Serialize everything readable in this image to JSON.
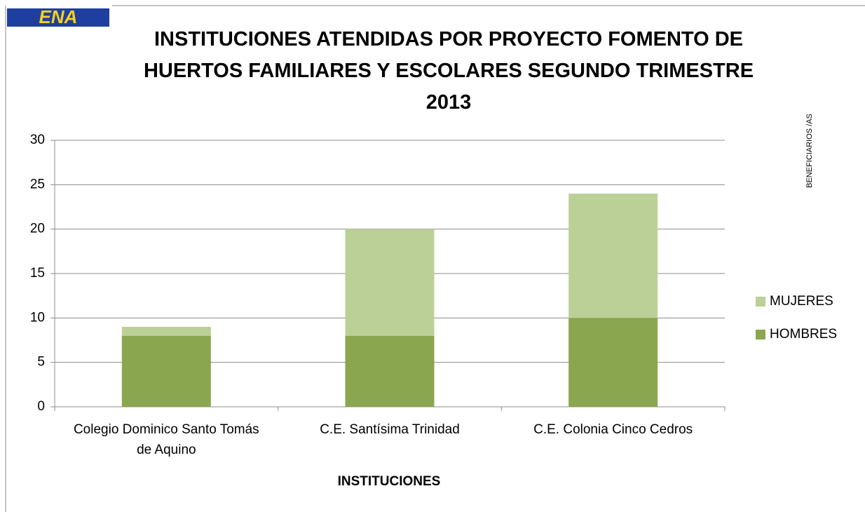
{
  "logo": "ENA",
  "chart_data": {
    "type": "stacked_bar",
    "title": "INSTITUCIONES ATENDIDAS POR PROYECTO FOMENTO DE HUERTOS FAMILIARES Y ESCOLARES SEGUNDO TRIMESTRE 2013",
    "x_label": "INSTITUCIONES",
    "y_label": "BENEFICIARIOS /AS",
    "categories": [
      "Colegio Dominico Santo Tomás de Aquino",
      "C.E. Santísima Trinidad",
      "C.E. Colonia Cinco Cedros"
    ],
    "series": [
      {
        "name": "HOMBRES",
        "color": "#8aa64e",
        "values": [
          8,
          8,
          10
        ]
      },
      {
        "name": "MUJERES",
        "color": "#bbd097",
        "values": [
          1,
          12,
          14
        ]
      }
    ],
    "ylim": [
      0,
      30
    ],
    "yticks": [
      0,
      5,
      10,
      15,
      20,
      25,
      30
    ],
    "grid": true,
    "legend": "right"
  }
}
